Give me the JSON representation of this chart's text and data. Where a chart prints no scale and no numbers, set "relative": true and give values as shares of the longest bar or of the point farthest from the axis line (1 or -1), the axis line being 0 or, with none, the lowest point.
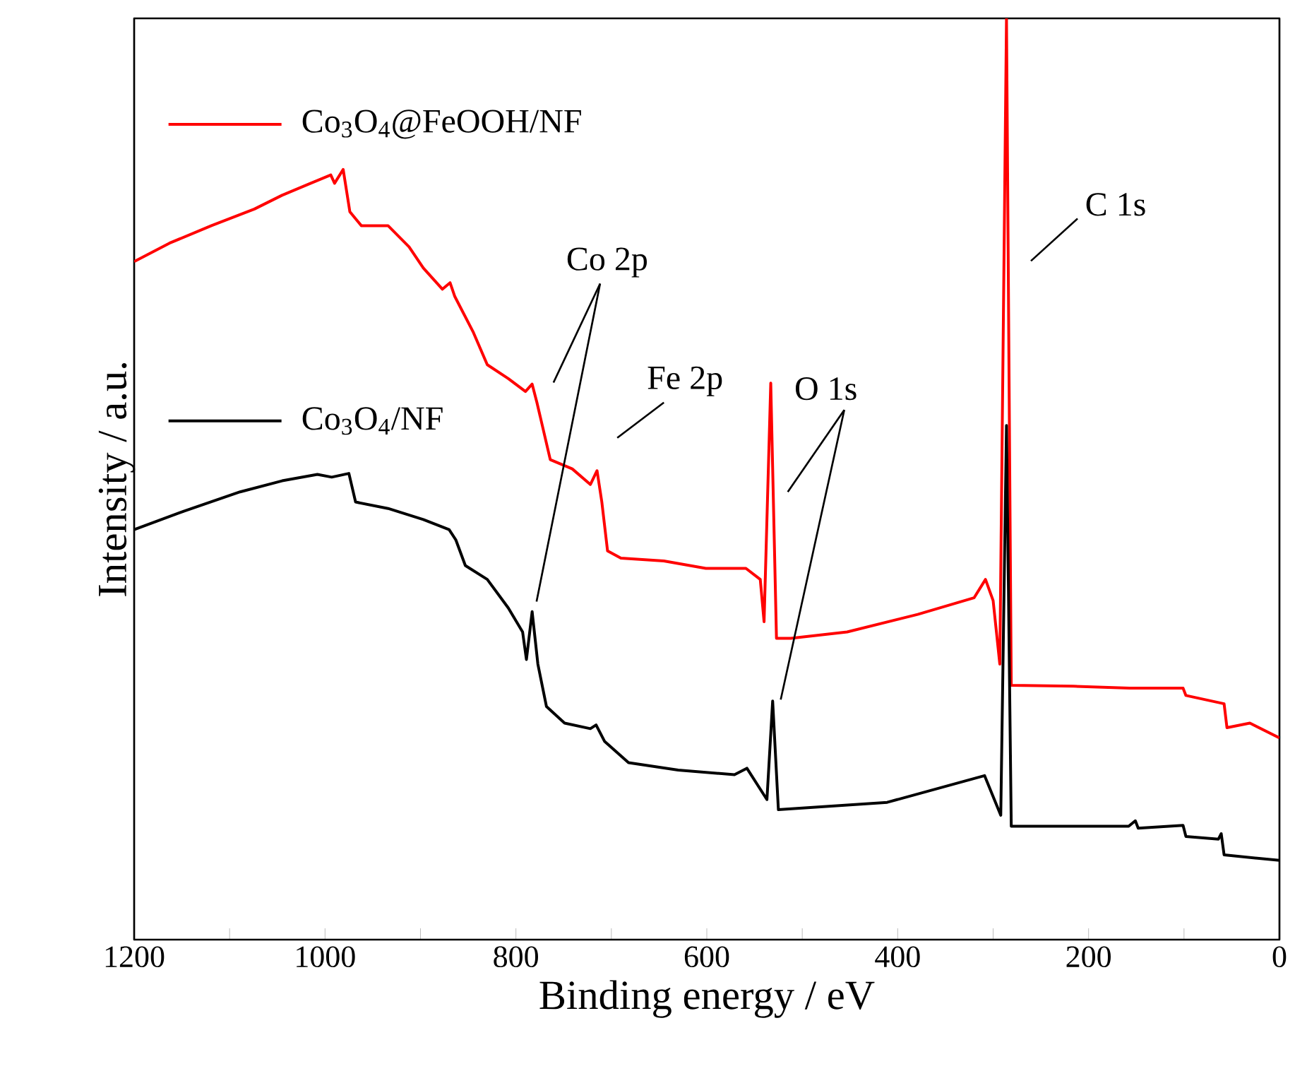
{
  "chart_data": {
    "type": "line",
    "relative": true,
    "xlabel": "Binding energy / eV",
    "ylabel": "Intensity / a.u.",
    "xlim": [
      1200,
      0
    ],
    "xticks": [
      1200,
      {
        "value": 1100,
        "label": null
      },
      1000,
      {
        "value": 900,
        "label": null
      },
      800,
      {
        "value": 700,
        "label": null
      },
      600,
      {
        "value": 500,
        "label": null
      },
      400,
      {
        "value": 300,
        "label": null
      },
      200,
      {
        "value": 100,
        "label": null
      },
      0
    ],
    "legend": "top left",
    "grid": false,
    "marker": "none",
    "line_style": "solid",
    "series": [
      {
        "name": "Co$_{3}$O$_{4}$@FeOOH/NF",
        "color": "#ff0000",
        "x": [
          1200,
          1163,
          1119,
          1074,
          1045,
          1015,
          994,
          990,
          981,
          974,
          962,
          934,
          912,
          897,
          877,
          869,
          864,
          845,
          830,
          808,
          790,
          783,
          778,
          764,
          741,
          722,
          715,
          710,
          704,
          690,
          645,
          601,
          559,
          544,
          540,
          533,
          527,
          512,
          453,
          379,
          320,
          308,
          300,
          293,
          286,
          281,
          216,
          157,
          101,
          98,
          58,
          55,
          31,
          0
        ],
        "values": [
          0.736,
          0.756,
          0.775,
          0.793,
          0.808,
          0.821,
          0.83,
          0.821,
          0.836,
          0.79,
          0.775,
          0.775,
          0.752,
          0.729,
          0.706,
          0.713,
          0.698,
          0.66,
          0.624,
          0.609,
          0.595,
          0.603,
          0.583,
          0.521,
          0.511,
          0.494,
          0.509,
          0.475,
          0.422,
          0.414,
          0.411,
          0.403,
          0.403,
          0.391,
          0.345,
          0.604,
          0.327,
          0.327,
          0.334,
          0.353,
          0.371,
          0.391,
          0.368,
          0.299,
          1.0,
          0.276,
          0.275,
          0.273,
          0.273,
          0.265,
          0.256,
          0.23,
          0.235,
          0.219
        ]
      },
      {
        "name": "Co$_{3}$O$_{4}$/NF",
        "color": "#000000",
        "x": [
          1200,
          1148,
          1089,
          1045,
          1008,
          993,
          975,
          968,
          934,
          897,
          870,
          863,
          853,
          830,
          808,
          793,
          789,
          783,
          777,
          768,
          749,
          722,
          716,
          707,
          682,
          630,
          571,
          558,
          537,
          531,
          525,
          411,
          309,
          292,
          286,
          281,
          158,
          151,
          148,
          101,
          98,
          64,
          61,
          58,
          0
        ],
        "values": [
          0.445,
          0.465,
          0.486,
          0.498,
          0.505,
          0.502,
          0.506,
          0.475,
          0.468,
          0.456,
          0.445,
          0.434,
          0.406,
          0.391,
          0.36,
          0.334,
          0.304,
          0.356,
          0.299,
          0.253,
          0.235,
          0.229,
          0.233,
          0.215,
          0.192,
          0.184,
          0.179,
          0.186,
          0.152,
          0.259,
          0.141,
          0.149,
          0.178,
          0.135,
          0.558,
          0.123,
          0.123,
          0.129,
          0.121,
          0.124,
          0.112,
          0.109,
          0.115,
          0.092,
          0.086
        ]
      }
    ],
    "annotations": [
      "Co 2p",
      "Fe 2p",
      "O 1s",
      "C 1s"
    ]
  }
}
